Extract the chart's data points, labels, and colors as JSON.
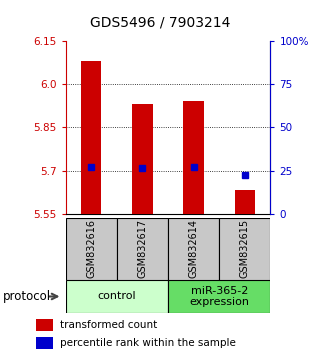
{
  "title": "GDS5496 / 7903214",
  "samples": [
    "GSM832616",
    "GSM832617",
    "GSM832614",
    "GSM832615"
  ],
  "bar_values": [
    6.08,
    5.93,
    5.94,
    5.635
  ],
  "bar_base": 5.55,
  "percentile_values": [
    5.712,
    5.71,
    5.712,
    5.685
  ],
  "ylim": [
    5.55,
    6.15
  ],
  "yticks_left": [
    5.55,
    5.7,
    5.85,
    6.0,
    6.15
  ],
  "yticks_right": [
    0,
    25,
    50,
    75,
    100
  ],
  "ytick_right_labels": [
    "0",
    "25",
    "50",
    "75",
    "100%"
  ],
  "gridlines": [
    5.7,
    5.85,
    6.0
  ],
  "bar_color": "#cc0000",
  "marker_color": "#0000cc",
  "bar_width": 0.4,
  "groups": [
    {
      "label": "control",
      "color": "#ccffcc"
    },
    {
      "label": "miR-365-2\nexpression",
      "color": "#66dd66"
    }
  ],
  "legend_items": [
    {
      "color": "#cc0000",
      "label": "transformed count"
    },
    {
      "color": "#0000cc",
      "label": "percentile rank within the sample"
    }
  ],
  "protocol_label": "protocol",
  "left_tick_color": "#cc0000",
  "right_tick_color": "#0000cc",
  "sample_bg_color": "#c8c8c8",
  "title_fontsize": 10,
  "tick_fontsize": 7.5,
  "sample_fontsize": 7,
  "group_fontsize": 8,
  "legend_fontsize": 7.5
}
